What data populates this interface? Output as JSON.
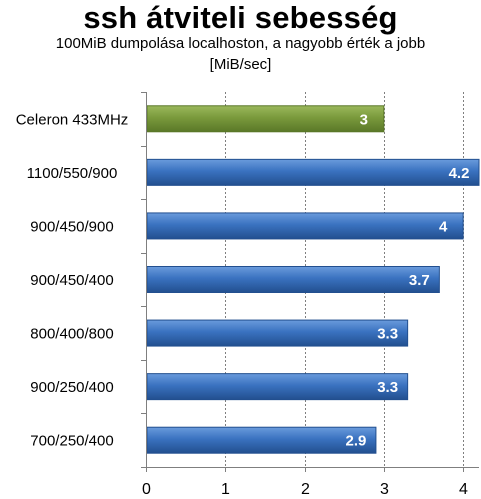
{
  "chart_data": {
    "type": "bar",
    "orientation": "horizontal",
    "title": "ssh átviteli sebesség",
    "subtitle": "100MiB dumpolása localhoston, a nagyobb érték a jobb",
    "unit_label": "[MiB/sec]",
    "xlabel": "",
    "ylabel": "",
    "categories": [
      "Celeron 433MHz",
      "1100/550/900",
      "900/450/900",
      "900/450/400",
      "800/400/800",
      "900/250/400",
      "700/250/400"
    ],
    "values": [
      3,
      4.2,
      4,
      3.7,
      3.3,
      3.3,
      2.9
    ],
    "value_labels": [
      "3",
      "4.2",
      "4",
      "3.7",
      "3.3",
      "3.3",
      "2.9"
    ],
    "xlim": [
      0,
      4.2
    ],
    "xticks": [
      0,
      1,
      2,
      3,
      4
    ],
    "grid": "vertical, dashed",
    "legend": "none",
    "colors": {
      "highlight": "#7a9a3c",
      "default": "#3a70bd"
    },
    "highlighted_categories": [
      "Celeron 433MHz"
    ]
  }
}
